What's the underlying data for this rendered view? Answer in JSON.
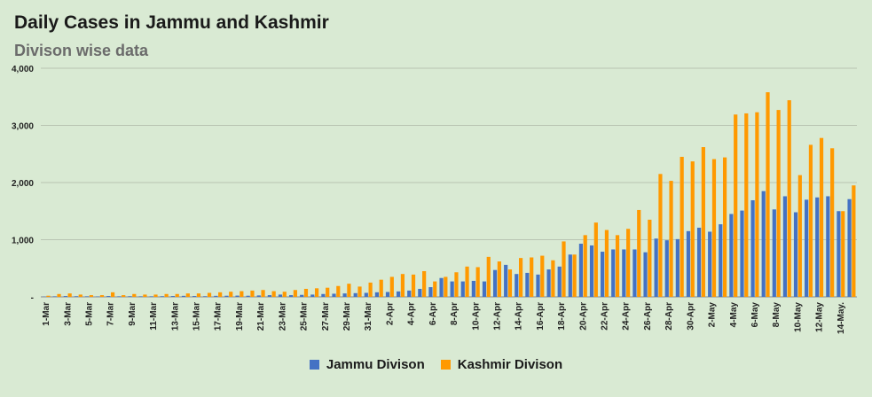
{
  "chart_data": {
    "type": "bar",
    "title": "Daily Cases in Jammu and Kashmir",
    "subtitle": "Divison wise data",
    "xlabel": "",
    "ylabel": "",
    "ylim": [
      0,
      4000
    ],
    "yticks": [
      0,
      1000,
      2000,
      3000,
      4000
    ],
    "ytick_labels": [
      "-",
      "1,000",
      "2,000",
      "3,000",
      "4,000"
    ],
    "grid": true,
    "legend": "bottom",
    "categories": [
      "1-Mar",
      "2-Mar",
      "3-Mar",
      "4-Mar",
      "5-Mar",
      "6-Mar",
      "7-Mar",
      "8-Mar",
      "9-Mar",
      "10-Mar",
      "11-Mar",
      "12-Mar",
      "13-Mar",
      "14-Mar",
      "15-Mar",
      "16-Mar",
      "17-Mar",
      "18-Mar",
      "19-Mar",
      "20-Mar",
      "21-Mar",
      "22-Mar",
      "23-Mar",
      "24-Mar",
      "25-Mar",
      "26-Mar",
      "27-Mar",
      "28-Mar",
      "29-Mar",
      "30-Mar",
      "31-Mar",
      "1-Apr",
      "2-Apr",
      "3-Apr",
      "4-Apr",
      "5-Apr",
      "6-Apr",
      "7-Apr",
      "8-Apr",
      "9-Apr",
      "10-Apr",
      "11-Apr",
      "12-Apr",
      "13-Apr",
      "14-Apr",
      "15-Apr",
      "16-Apr",
      "17-Apr",
      "18-Apr",
      "19-Apr",
      "20-Apr",
      "21-Apr",
      "22-Apr",
      "23-Apr",
      "24-Apr",
      "25-Apr",
      "26-Apr",
      "27-Apr",
      "28-Apr",
      "29-Apr",
      "30-Apr",
      "1-May",
      "2-May",
      "3-May",
      "4-May",
      "5-May",
      "6-May",
      "7-May",
      "8-May",
      "9-May",
      "10-May",
      "11-May",
      "12-May",
      "13-May",
      "14-May.",
      "15-May"
    ],
    "shown_labels": [
      "1-Mar",
      "3-Mar",
      "5-Mar",
      "7-Mar",
      "9-Mar",
      "11-Mar",
      "13-Mar",
      "15-Mar",
      "17-Mar",
      "19-Mar",
      "21-Mar",
      "23-Mar",
      "25-Mar",
      "27-Mar",
      "29-Mar",
      "31-Mar",
      "2-Apr",
      "4-Apr",
      "6-Apr",
      "8-Apr",
      "10-Apr",
      "12-Apr",
      "14-Apr",
      "16-Apr",
      "18-Apr",
      "20-Apr",
      "22-Apr",
      "24-Apr",
      "26-Apr",
      "28-Apr",
      "30-Apr",
      "2-May",
      "4-May",
      "6-May",
      "8-May",
      "10-May",
      "12-May",
      "14-May."
    ],
    "series": [
      {
        "name": "Jammu Divison",
        "color": "#4472c4",
        "values": [
          5,
          10,
          15,
          12,
          10,
          8,
          15,
          10,
          12,
          10,
          10,
          12,
          15,
          18,
          15,
          12,
          18,
          20,
          22,
          20,
          25,
          30,
          40,
          30,
          35,
          40,
          50,
          55,
          60,
          65,
          70,
          80,
          85,
          95,
          110,
          140,
          170,
          330,
          270,
          270,
          280,
          270,
          470,
          560,
          400,
          420,
          390,
          480,
          530,
          740,
          930,
          900,
          790,
          830,
          830,
          830,
          780,
          1020,
          990,
          1010,
          1150,
          1210,
          1140,
          1270,
          1450,
          1510,
          1690,
          1850,
          1530,
          1760,
          1480,
          1700,
          1740,
          1760,
          1500,
          1710
        ]
      },
      {
        "name": "Kashmir Divison",
        "color": "#ff9900",
        "values": [
          20,
          50,
          60,
          40,
          30,
          30,
          80,
          30,
          50,
          40,
          40,
          50,
          50,
          60,
          60,
          70,
          80,
          90,
          100,
          110,
          120,
          100,
          90,
          120,
          140,
          150,
          160,
          190,
          230,
          180,
          250,
          300,
          350,
          400,
          390,
          450,
          270,
          350,
          430,
          530,
          520,
          700,
          620,
          480,
          680,
          690,
          720,
          640,
          970,
          740,
          1080,
          1300,
          1170,
          1080,
          1190,
          1520,
          1350,
          2150,
          2030,
          2450,
          2370,
          2620,
          2410,
          2440,
          3190,
          3210,
          3230,
          3580,
          3270,
          3440,
          2130,
          2660,
          2780,
          2600,
          1500,
          1950
        ]
      }
    ]
  }
}
